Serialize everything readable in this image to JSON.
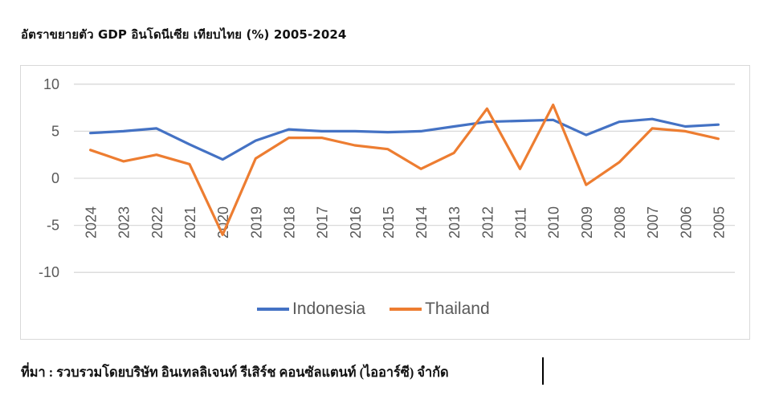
{
  "title": "อัตราขยายตัว  GDP อินโดนีเซีย เทียบไทย (%) 2005-2024",
  "source": "ที่มา : รวบรวมโดยบริษัท อินเทลลิเจนท์ รีเสิร์ช คอนซัลแตนท์ (ไออาร์ซี) จำกัด",
  "colors": {
    "indonesia": "#4472C4",
    "thailand": "#ED7D31",
    "grid": "#d9d9d9",
    "axis_text": "#595959"
  },
  "legend": {
    "items": [
      {
        "label": "Indonesia"
      },
      {
        "label": "Thailand"
      }
    ]
  },
  "chart_data": {
    "type": "line",
    "title": "อัตราขยายตัว  GDP อินโดนีเซีย เทียบไทย (%) 2005-2024",
    "xlabel": "",
    "ylabel": "",
    "ylim": [
      -10,
      10
    ],
    "yticks": [
      10,
      5,
      0,
      -5,
      -10
    ],
    "grid": true,
    "legend_position": "bottom",
    "categories": [
      "2024",
      "2023",
      "2022",
      "2021",
      "2020",
      "2019",
      "2018",
      "2017",
      "2016",
      "2015",
      "2014",
      "2013",
      "2012",
      "2011",
      "2010",
      "2009",
      "2008",
      "2007",
      "2006",
      "2005"
    ],
    "series": [
      {
        "name": "Indonesia",
        "color": "#4472C4",
        "values": [
          4.8,
          5.0,
          5.3,
          3.6,
          2.0,
          4.0,
          5.2,
          5.0,
          5.0,
          4.9,
          5.0,
          5.5,
          6.0,
          6.1,
          6.2,
          4.6,
          6.0,
          6.3,
          5.5,
          5.7
        ]
      },
      {
        "name": "Thailand",
        "color": "#ED7D31",
        "values": [
          3.0,
          1.8,
          2.5,
          1.5,
          -6.0,
          2.1,
          4.3,
          4.3,
          3.5,
          3.1,
          1.0,
          2.7,
          7.4,
          1.0,
          7.8,
          -0.7,
          1.7,
          5.3,
          5.0,
          4.2
        ]
      }
    ]
  }
}
